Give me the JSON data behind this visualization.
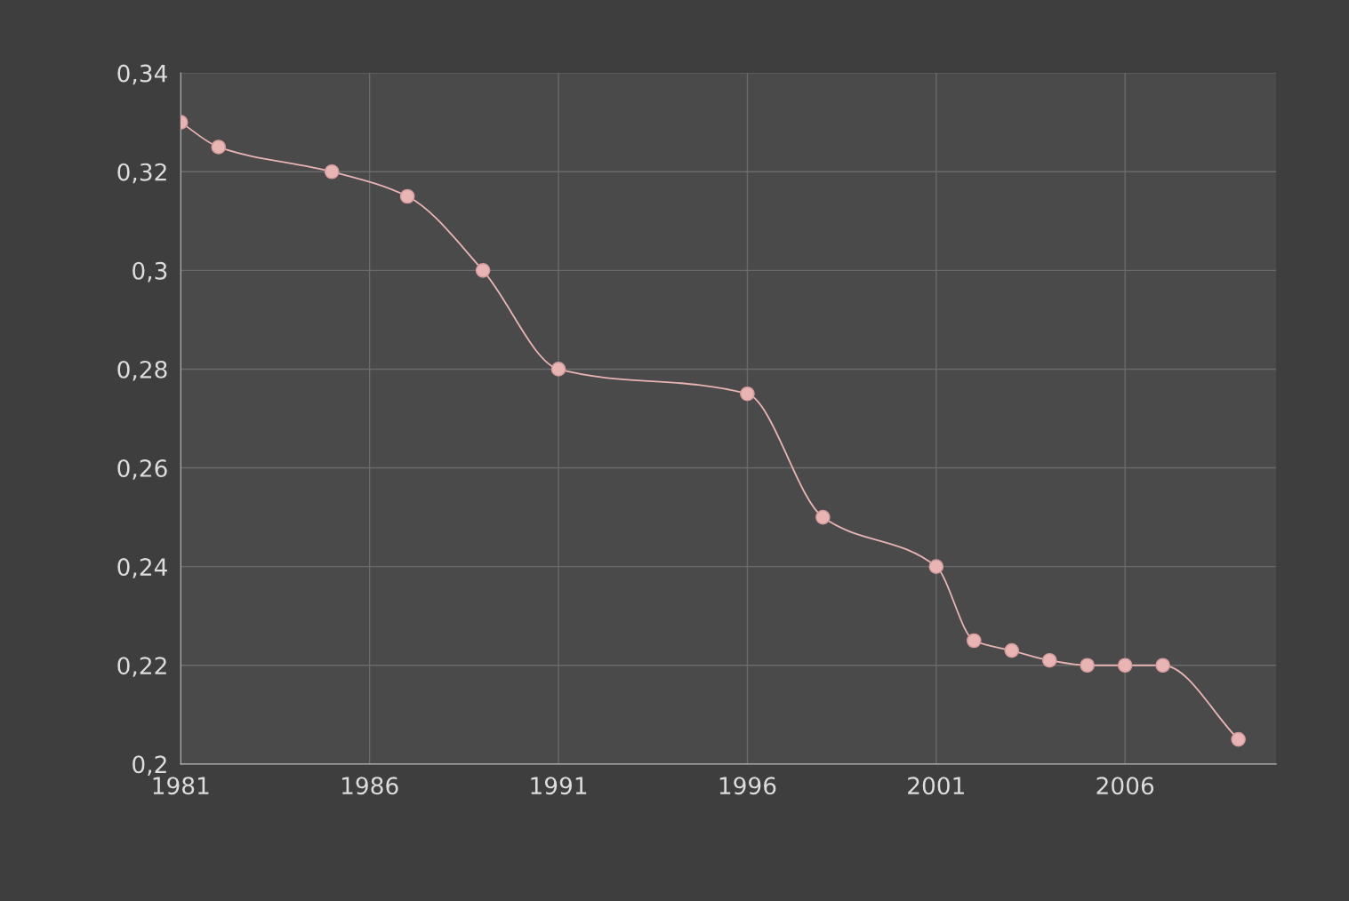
{
  "chart_data": {
    "type": "line",
    "x": [
      1981,
      1982,
      1985,
      1987,
      1989,
      1991,
      1996,
      1998,
      2001,
      2002,
      2003,
      2004,
      2005,
      2006,
      2007,
      2009
    ],
    "series": [
      {
        "color": "#e8b4b4",
        "values": [
          0.33,
          0.325,
          0.32,
          0.315,
          0.3,
          0.28,
          0.275,
          0.25,
          0.24,
          0.225,
          0.223,
          0.221,
          0.22,
          0.22,
          0.22,
          0.205
        ]
      }
    ],
    "xlim": [
      1981,
      2010
    ],
    "xticks": [
      1981,
      1986,
      1991,
      1996,
      2001,
      2006
    ],
    "ylim": [
      0.2,
      0.34
    ],
    "yticks": [
      {
        "value": 0.2,
        "label": "0,2"
      },
      {
        "value": 0.22,
        "label": "0,22"
      },
      {
        "value": 0.24,
        "label": "0,24"
      },
      {
        "value": 0.26,
        "label": "0,26"
      },
      {
        "value": 0.28,
        "label": "0,28"
      },
      {
        "value": 0.3,
        "label": "0,3"
      },
      {
        "value": 0.32,
        "label": "0,32"
      },
      {
        "value": 0.34,
        "label": "0,34"
      }
    ],
    "grid": true,
    "marker": "circle",
    "line_style": "solid"
  }
}
